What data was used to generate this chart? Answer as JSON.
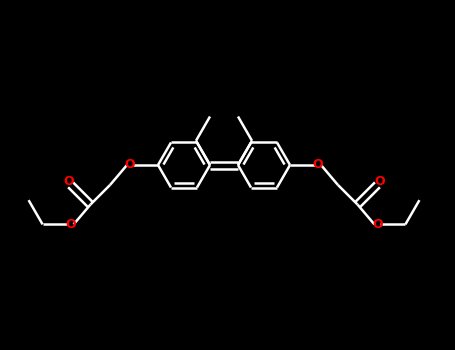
{
  "bg_color": "#000000",
  "bond_color": "#ffffff",
  "oxygen_color": "#ff0000",
  "line_width": 1.8,
  "figsize": [
    4.55,
    3.5
  ],
  "dpi": 100,
  "xlim": [
    0,
    455
  ],
  "ylim": [
    0,
    350
  ]
}
